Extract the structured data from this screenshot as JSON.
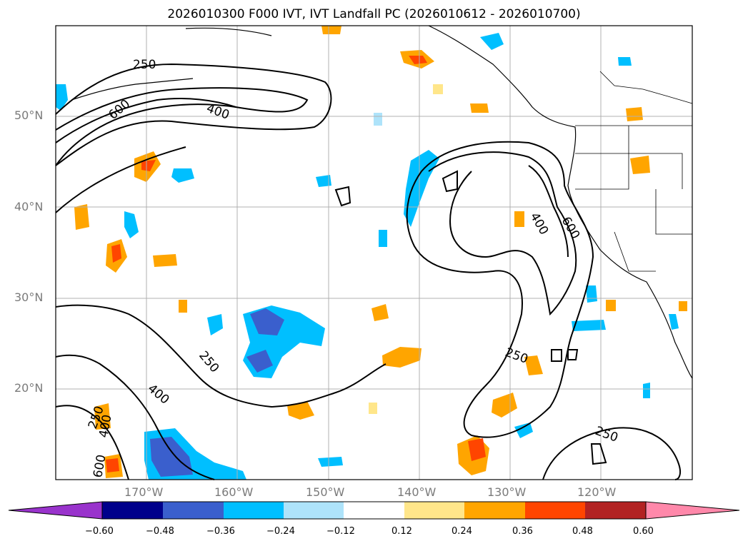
{
  "title": "2026010300 F000 IVT, IVT Landfall PC (2026010612 - 2026010700)",
  "lat_ticks": [
    "50°N",
    "40°N",
    "30°N",
    "20°N"
  ],
  "lon_ticks": [
    "170°W",
    "160°W",
    "150°W",
    "140°W",
    "130°W",
    "120°W"
  ],
  "contour_labels": [
    "250",
    "600",
    "400",
    "400",
    "600",
    "250",
    "400",
    "250",
    "250",
    "250",
    "400",
    "600"
  ],
  "colorbar": {
    "ticks": [
      "−0.60",
      "−0.48",
      "−0.36",
      "−0.24",
      "−0.12",
      "0.12",
      "0.24",
      "0.36",
      "0.48",
      "0.60"
    ],
    "colors": [
      "#9933cc",
      "#00008b",
      "#3a5fcd",
      "#00bfff",
      "#aee3fa",
      "#ffffff",
      "#ffe68a",
      "#ffa500",
      "#ff4500",
      "#b22222",
      "#ff88aa"
    ]
  },
  "map_meta": {
    "projection": "PlateCarree",
    "lon_range": [
      -180,
      -110
    ],
    "lat_range": [
      10,
      60
    ],
    "field": "IVT (kg m-1 s-1) contours + landfall PC shading"
  }
}
